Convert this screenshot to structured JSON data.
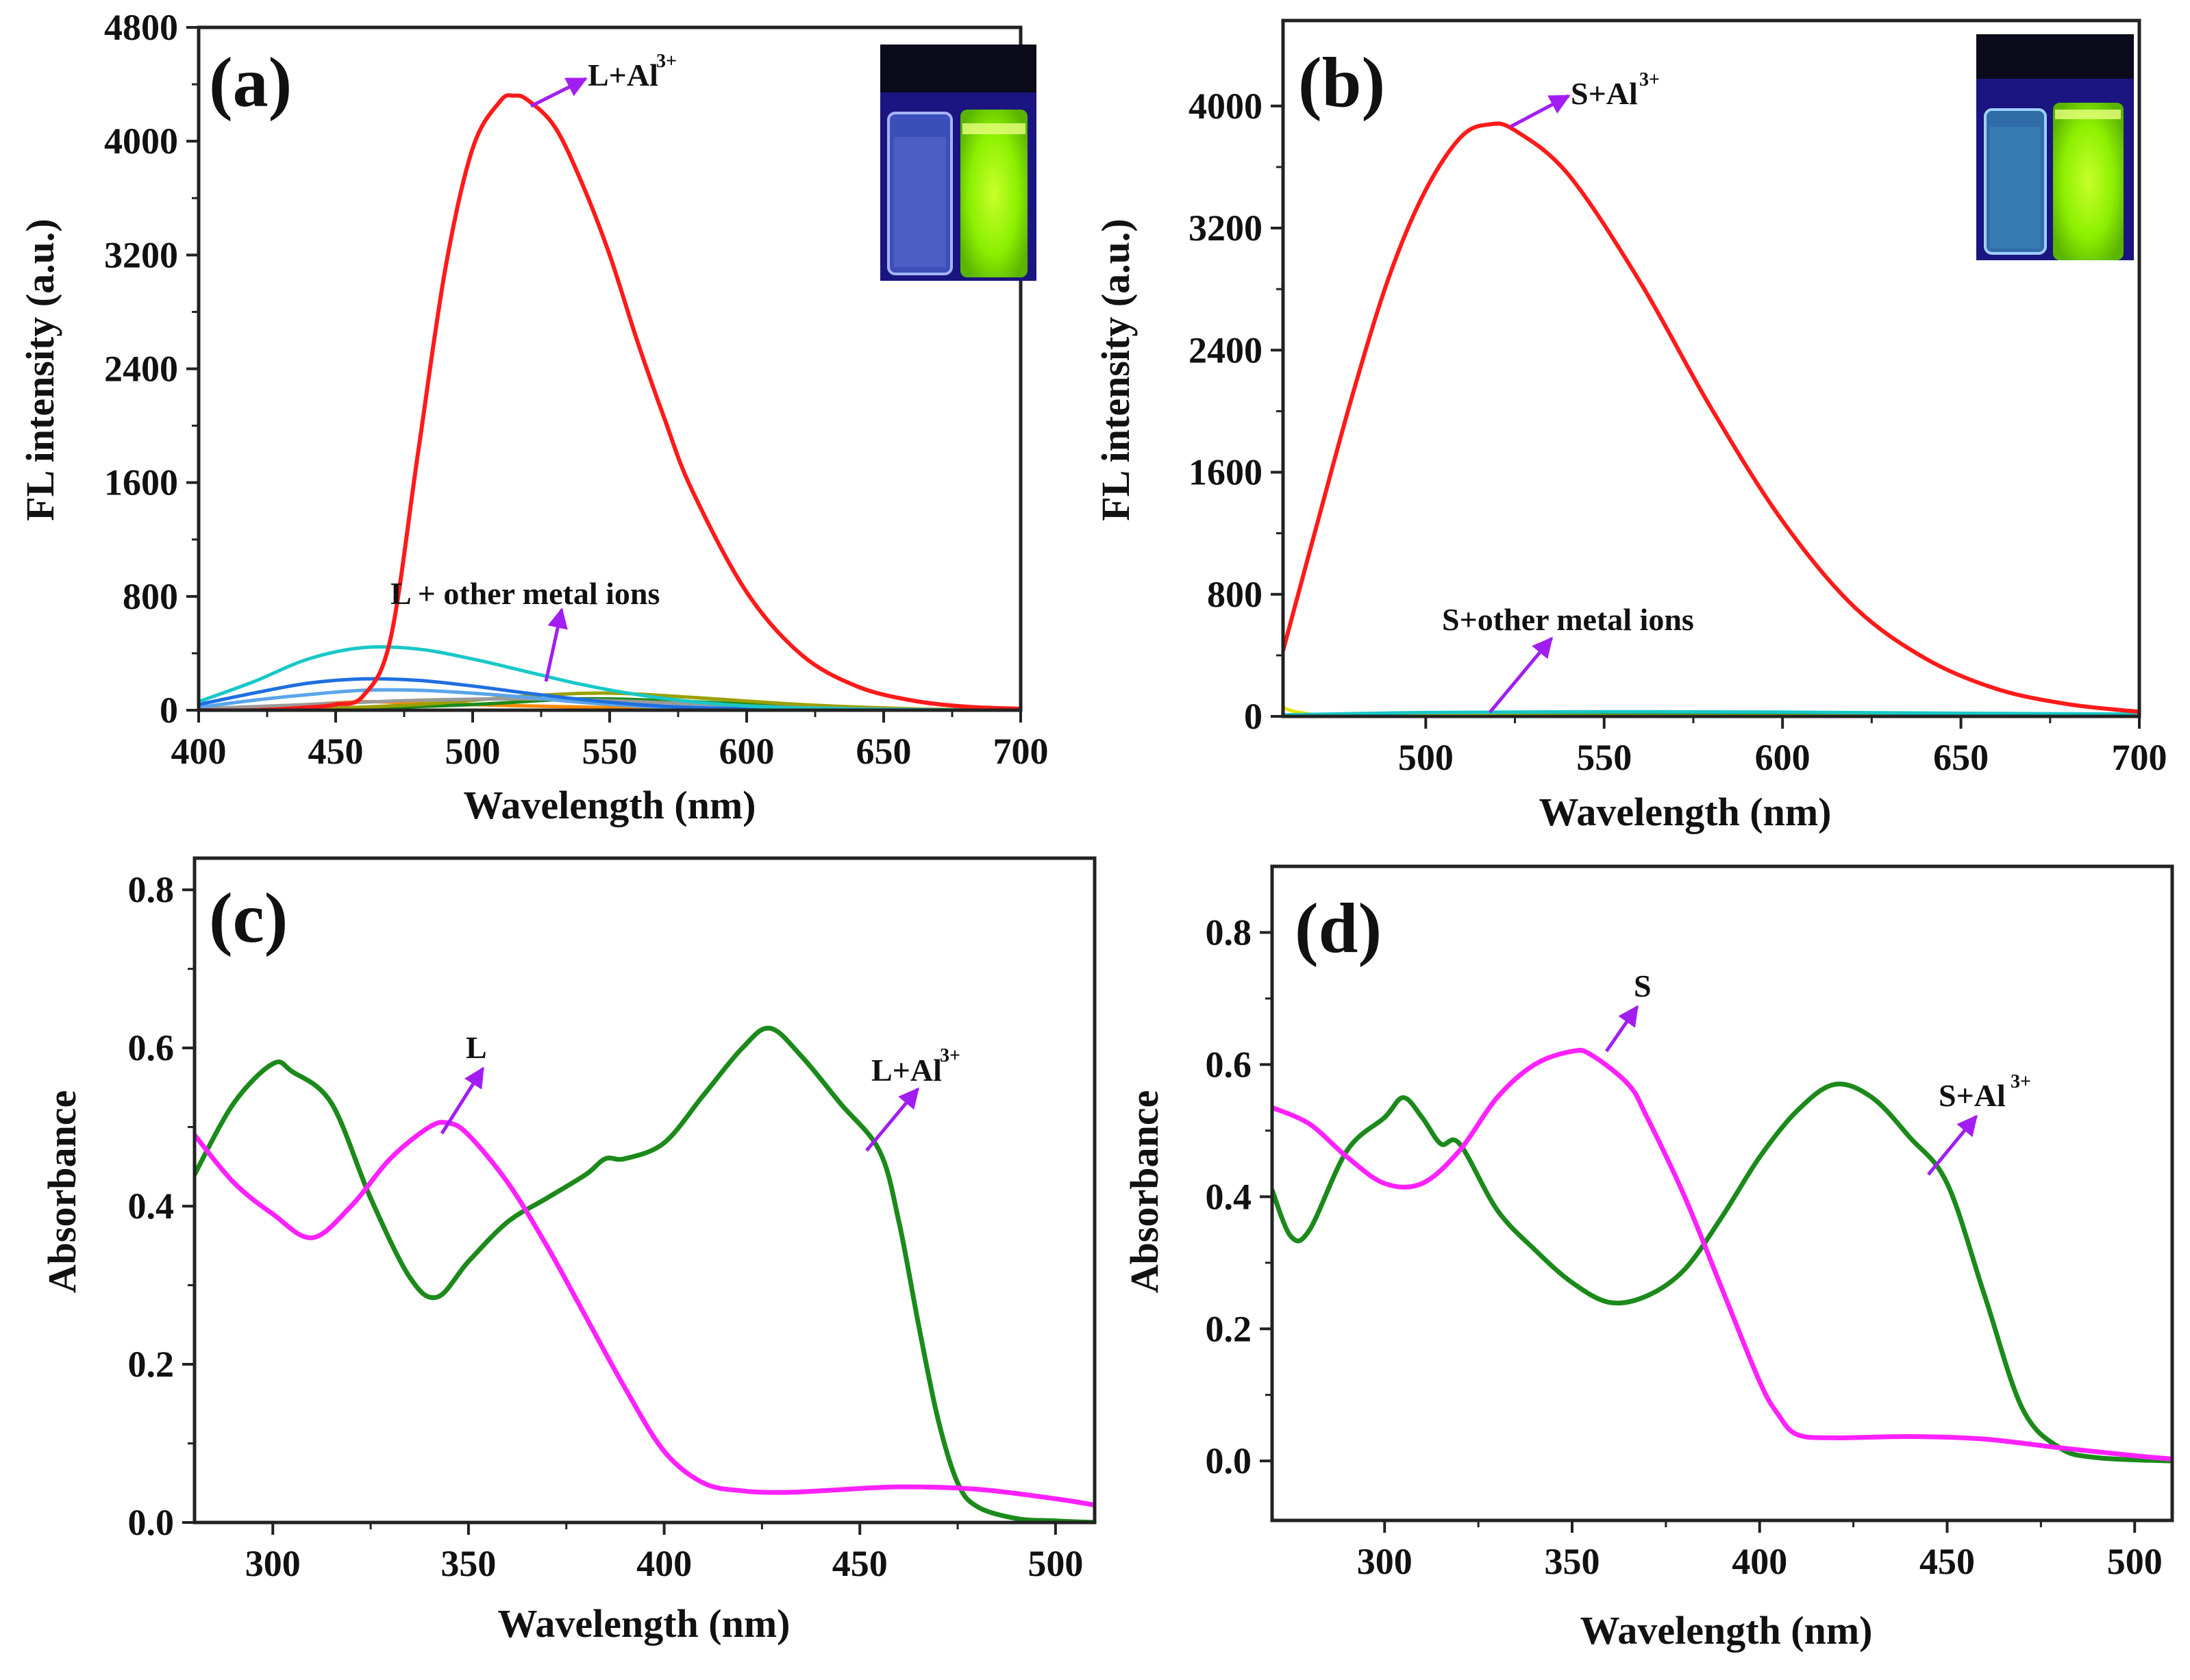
{
  "colors": {
    "red": "#ff1a1a",
    "cyan": "#19c8c8",
    "blue": "#1e6fe0",
    "lightblue": "#5aa5ea",
    "gray": "#9a9a9a",
    "olive": "#9aa000",
    "orange": "#ff8a00",
    "green": "#1b8a1b",
    "magenta": "#ff21ff",
    "yellow": "#e6e600",
    "arrow": "#a21ef0"
  },
  "chart_data": [
    {
      "panel": "(a)",
      "type": "line",
      "xlabel": "Wavelength (nm)",
      "ylabel": "FL intensity (a.u.)",
      "xlim": [
        400,
        700
      ],
      "ylim": [
        0,
        4800
      ],
      "xticks": [
        400,
        450,
        500,
        550,
        600,
        650,
        700
      ],
      "yticks": [
        0,
        800,
        1600,
        2400,
        3200,
        4000,
        4800
      ],
      "annotations": [
        {
          "text": "L+Al",
          "sup": "3+"
        },
        {
          "text": "L + other metal ions",
          "sup": ""
        }
      ],
      "inset": "photo of two cuvettes under UV light: left colorless/blue, right bright green",
      "series": [
        {
          "name": "L+Al3+",
          "color": "red",
          "x": [
            400,
            420,
            440,
            450,
            460,
            470,
            480,
            490,
            500,
            510,
            515,
            520,
            530,
            540,
            550,
            560,
            570,
            580,
            600,
            620,
            640,
            660,
            680,
            700
          ],
          "y": [
            0,
            0,
            20,
            40,
            100,
            500,
            1800,
            3100,
            3950,
            4280,
            4320,
            4290,
            4100,
            3700,
            3200,
            2600,
            2050,
            1550,
            830,
            390,
            170,
            70,
            25,
            10
          ]
        },
        {
          "name": "L+metal 1",
          "color": "cyan",
          "x": [
            400,
            420,
            440,
            460,
            480,
            500,
            520,
            540,
            560,
            580,
            600,
            620,
            650,
            700
          ],
          "y": [
            60,
            200,
            360,
            440,
            430,
            360,
            270,
            180,
            110,
            60,
            30,
            15,
            5,
            0
          ]
        },
        {
          "name": "L+metal 2",
          "color": "blue",
          "x": [
            400,
            420,
            440,
            460,
            480,
            500,
            520,
            540,
            560,
            580,
            600,
            640,
            700
          ],
          "y": [
            40,
            120,
            190,
            220,
            210,
            170,
            120,
            75,
            40,
            20,
            10,
            3,
            0
          ]
        },
        {
          "name": "L+metal 3",
          "color": "lightblue",
          "x": [
            400,
            420,
            440,
            460,
            480,
            500,
            520,
            540,
            560,
            580,
            600,
            640,
            700
          ],
          "y": [
            20,
            70,
            110,
            140,
            140,
            120,
            90,
            55,
            30,
            15,
            8,
            2,
            0
          ]
        },
        {
          "name": "L+metal 4",
          "color": "gray",
          "x": [
            400,
            440,
            480,
            520,
            560,
            600,
            640,
            700
          ],
          "y": [
            10,
            40,
            70,
            80,
            60,
            30,
            10,
            0
          ]
        },
        {
          "name": "L+metal 5",
          "color": "olive",
          "x": [
            400,
            440,
            480,
            520,
            550,
            580,
            620,
            660,
            700
          ],
          "y": [
            0,
            10,
            40,
            100,
            120,
            90,
            40,
            10,
            0
          ]
        },
        {
          "name": "L+metal 6",
          "color": "green",
          "x": [
            400,
            450,
            500,
            540,
            580,
            620,
            660,
            700
          ],
          "y": [
            0,
            10,
            40,
            80,
            60,
            25,
            8,
            0
          ]
        },
        {
          "name": "L+metal 7",
          "color": "orange",
          "x": [
            400,
            440,
            460,
            480,
            520,
            560,
            600,
            700
          ],
          "y": [
            0,
            40,
            60,
            50,
            30,
            15,
            5,
            0
          ]
        }
      ]
    },
    {
      "panel": "(b)",
      "type": "line",
      "xlabel": "Wavelength (nm)",
      "ylabel": "FL intensity (a.u.)",
      "xlim": [
        460,
        700
      ],
      "ylim": [
        0,
        4560
      ],
      "xticks": [
        500,
        550,
        600,
        650,
        700
      ],
      "yticks": [
        0,
        800,
        1600,
        2400,
        3200,
        4000
      ],
      "annotations": [
        {
          "text": "S+Al",
          "sup": "3+"
        },
        {
          "text": "S+other metal ions",
          "sup": ""
        }
      ],
      "inset": "photo of two cuvettes under UV light: left colorless/blue, right bright green",
      "series": [
        {
          "name": "S+Al3+",
          "color": "red",
          "x": [
            460,
            470,
            480,
            490,
            500,
            510,
            518,
            525,
            540,
            560,
            580,
            600,
            620,
            640,
            660,
            680,
            700
          ],
          "y": [
            430,
            1300,
            2150,
            2900,
            3450,
            3800,
            3880,
            3840,
            3550,
            2850,
            2020,
            1280,
            720,
            380,
            180,
            80,
            30
          ]
        },
        {
          "name": "S+metal 1",
          "color": "cyan",
          "x": [
            460,
            500,
            550,
            600,
            650,
            700
          ],
          "y": [
            10,
            25,
            30,
            28,
            20,
            15
          ]
        },
        {
          "name": "S+metal 2",
          "color": "yellow",
          "x": [
            460,
            462,
            466,
            470,
            480,
            700
          ],
          "y": [
            60,
            40,
            20,
            10,
            5,
            0
          ]
        },
        {
          "name": "S+metal 3",
          "color": "green",
          "x": [
            460,
            500,
            550,
            600,
            700
          ],
          "y": [
            5,
            8,
            10,
            8,
            4
          ]
        }
      ]
    },
    {
      "panel": "(c)",
      "type": "line",
      "xlabel": "Wavelength (nm)",
      "ylabel": "Absorbance",
      "xlim": [
        280,
        510
      ],
      "ylim": [
        0.0,
        0.84
      ],
      "xticks": [
        300,
        350,
        400,
        450,
        500
      ],
      "yticks": [
        0.0,
        0.2,
        0.4,
        0.6,
        0.8
      ],
      "annotations": [
        {
          "text": "L",
          "sup": ""
        },
        {
          "text": "L+Al",
          "sup": "3+"
        }
      ],
      "series": [
        {
          "name": "L",
          "color": "magenta",
          "x": [
            280,
            290,
            300,
            310,
            320,
            330,
            340,
            345,
            350,
            360,
            370,
            380,
            390,
            400,
            410,
            420,
            430,
            440,
            460,
            480,
            500,
            510
          ],
          "y": [
            0.49,
            0.43,
            0.39,
            0.36,
            0.4,
            0.46,
            0.5,
            0.505,
            0.49,
            0.43,
            0.35,
            0.26,
            0.17,
            0.09,
            0.05,
            0.04,
            0.038,
            0.04,
            0.045,
            0.042,
            0.03,
            0.022
          ]
        },
        {
          "name": "L+Al3+",
          "color": "green",
          "x": [
            280,
            290,
            300,
            305,
            315,
            325,
            335,
            342,
            350,
            360,
            370,
            380,
            385,
            390,
            400,
            410,
            420,
            427,
            435,
            445,
            455,
            460,
            465,
            470,
            475,
            480,
            490,
            500,
            510
          ],
          "y": [
            0.44,
            0.53,
            0.58,
            0.57,
            0.53,
            0.41,
            0.31,
            0.285,
            0.33,
            0.38,
            0.41,
            0.44,
            0.46,
            0.46,
            0.48,
            0.54,
            0.6,
            0.625,
            0.59,
            0.53,
            0.47,
            0.38,
            0.25,
            0.13,
            0.05,
            0.02,
            0.005,
            0.002,
            0.0
          ]
        }
      ]
    },
    {
      "panel": "(d)",
      "type": "line",
      "xlabel": "Wavelength (nm)",
      "ylabel": "Absorbance",
      "xlim": [
        270,
        510
      ],
      "ylim": [
        -0.09,
        0.9
      ],
      "xticks": [
        300,
        350,
        400,
        450,
        500
      ],
      "yticks": [
        0.0,
        0.2,
        0.4,
        0.6,
        0.8
      ],
      "annotations": [
        {
          "text": "S",
          "sup": ""
        },
        {
          "text": "S+Al",
          "sup": "3+"
        }
      ],
      "series": [
        {
          "name": "S",
          "color": "magenta",
          "x": [
            270,
            280,
            290,
            300,
            310,
            320,
            330,
            340,
            350,
            355,
            365,
            370,
            380,
            390,
            400,
            405,
            410,
            420,
            440,
            460,
            480,
            500,
            510
          ],
          "y": [
            0.535,
            0.51,
            0.46,
            0.42,
            0.42,
            0.47,
            0.55,
            0.6,
            0.62,
            0.615,
            0.57,
            0.52,
            0.4,
            0.26,
            0.12,
            0.07,
            0.04,
            0.035,
            0.037,
            0.033,
            0.02,
            0.008,
            0.003
          ]
        },
        {
          "name": "S+Al3+",
          "color": "green",
          "x": [
            270,
            275,
            280,
            290,
            300,
            305,
            310,
            315,
            320,
            330,
            340,
            350,
            360,
            370,
            380,
            390,
            400,
            410,
            420,
            430,
            440,
            450,
            460,
            470,
            480,
            490,
            510
          ],
          "y": [
            0.41,
            0.34,
            0.35,
            0.47,
            0.52,
            0.55,
            0.52,
            0.48,
            0.48,
            0.38,
            0.32,
            0.27,
            0.24,
            0.25,
            0.29,
            0.37,
            0.46,
            0.53,
            0.57,
            0.55,
            0.49,
            0.42,
            0.25,
            0.08,
            0.02,
            0.005,
            0.0
          ]
        }
      ]
    }
  ]
}
